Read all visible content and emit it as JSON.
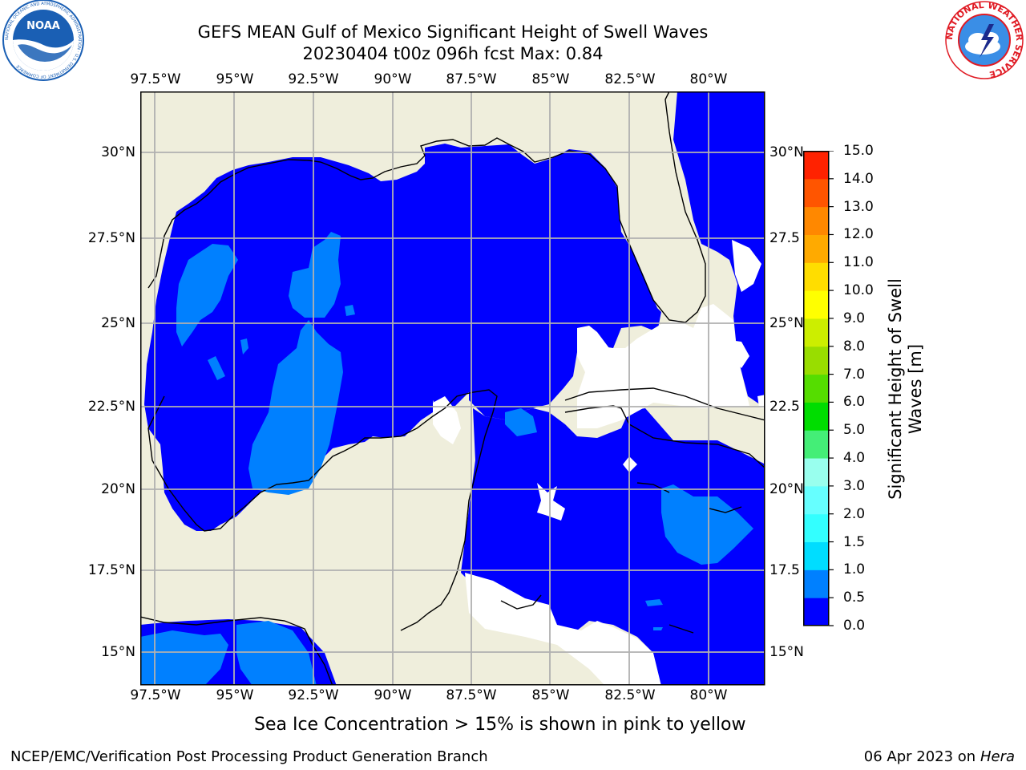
{
  "header": {
    "title_line1": "GEFS MEAN Gulf of Mexico Significant Height of Swell Waves",
    "title_line2": "20230404 t00z 096h fcst   Max: 0.84"
  },
  "logos": {
    "noaa": {
      "text": "NOAA",
      "ring_text": "NATIONAL OCEANIC AND ATMOSPHERIC ADMINISTRATION · U.S. DEPARTMENT OF COMMERCE",
      "color": "#1a5fb4"
    },
    "nws": {
      "ring_text": "NATIONAL WEATHER SERVICE",
      "color": "#e01b24"
    }
  },
  "map": {
    "land_color": "#efeedc",
    "ocean_color": "#0000ff",
    "grid_color": "#b0b0b0",
    "lon_labels": [
      "97.5°W",
      "95°W",
      "92.5°W",
      "90°W",
      "87.5°W",
      "85°W",
      "82.5°W",
      "80°W"
    ],
    "lat_labels": [
      "30°N",
      "27.5°N",
      "25°N",
      "22.5°N",
      "20°N",
      "17.5°N",
      "15°N"
    ],
    "lat_labels_right": [
      "30°N",
      "27.5",
      "25°N",
      "22.5",
      "20°N",
      "17.5",
      "15°N"
    ]
  },
  "colorbar": {
    "title_line1": "Significant Height of Swell",
    "title_line2": "Waves [m]",
    "ticks": [
      "0.0",
      "0.5",
      "1.0",
      "1.5",
      "2.0",
      "3.0",
      "4.0",
      "5.0",
      "6.0",
      "7.0",
      "8.0",
      "9.0",
      "10.0",
      "11.0",
      "12.0",
      "13.0",
      "14.0",
      "15.0"
    ],
    "colors": [
      "#0000ff",
      "#0080ff",
      "#00ddff",
      "#33ffff",
      "#66ffff",
      "#99ffee",
      "#44ee77",
      "#00dd00",
      "#55dd00",
      "#99dd00",
      "#ccee00",
      "#ffff00",
      "#ffdd00",
      "#ffaa00",
      "#ff8800",
      "#ff5500",
      "#ff2200",
      "#ff0000"
    ]
  },
  "caption": "Sea Ice Concentration > 15% is shown in pink to yellow",
  "footer": {
    "left": "NCEP/EMC/Verification Post Processing Product Generation Branch",
    "date": "06 Apr 2023 on ",
    "machine": "Hera"
  }
}
